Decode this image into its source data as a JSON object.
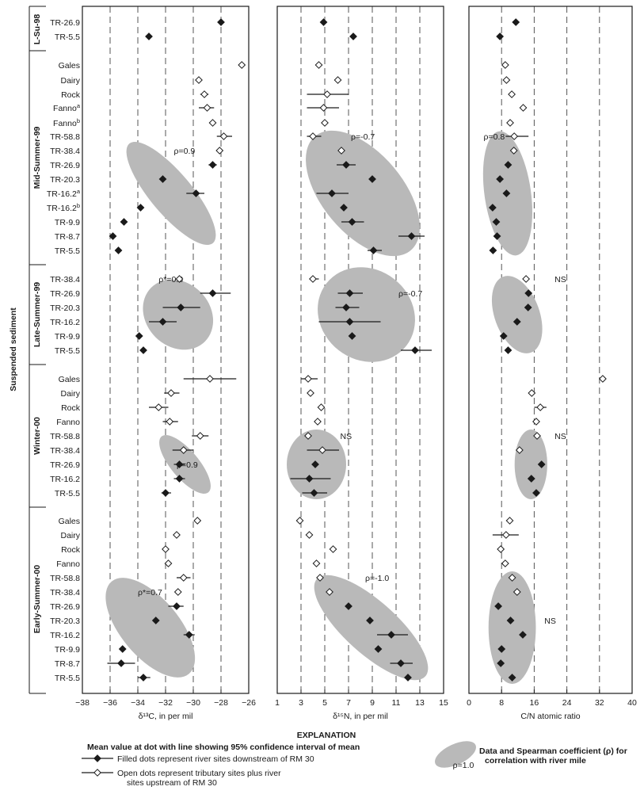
{
  "chart_data": {
    "type": "scatter",
    "description_labels": {
      "side_label": "Suspended sediment",
      "explanation_title": "EXPLANATION",
      "mean_title": "Mean value at dot with line showing 95% confidence interval of mean",
      "filled_text": "Filled dots represent river sites downstream of RM 30",
      "open_text_1": "Open dots represent tributary sites plus river",
      "open_text_2": "sites upstream of RM 30",
      "ellipse_text_1": "Data and Spearman coefficient (ρ) for",
      "ellipse_text_2": "correlation with river mile",
      "ellipse_rho": "ρ=1.0"
    },
    "rows": [
      {
        "label": "TR-26.9",
        "sup": "",
        "fill": true
      },
      {
        "label": "TR-5.5",
        "sup": "",
        "fill": true
      },
      {
        "label": "Gales",
        "sup": "",
        "fill": false
      },
      {
        "label": "Dairy",
        "sup": "",
        "fill": false
      },
      {
        "label": "Rock",
        "sup": "",
        "fill": false
      },
      {
        "label": "Fanno",
        "sup": "a",
        "fill": false
      },
      {
        "label": "Fanno",
        "sup": "b",
        "fill": false
      },
      {
        "label": "TR-58.8",
        "sup": "",
        "fill": false
      },
      {
        "label": "TR-38.4",
        "sup": "",
        "fill": false
      },
      {
        "label": "TR-26.9",
        "sup": "",
        "fill": true
      },
      {
        "label": "TR-20.3",
        "sup": "",
        "fill": true
      },
      {
        "label": "TR-16.2",
        "sup": "a",
        "fill": true
      },
      {
        "label": "TR-16.2",
        "sup": "b",
        "fill": true
      },
      {
        "label": "TR-9.9",
        "sup": "",
        "fill": true
      },
      {
        "label": "TR-8.7",
        "sup": "",
        "fill": true
      },
      {
        "label": "TR-5.5",
        "sup": "",
        "fill": true
      },
      {
        "label": "TR-38.4",
        "sup": "",
        "fill": false
      },
      {
        "label": "TR-26.9",
        "sup": "",
        "fill": true
      },
      {
        "label": "TR-20.3",
        "sup": "",
        "fill": true
      },
      {
        "label": "TR-16.2",
        "sup": "",
        "fill": true
      },
      {
        "label": "TR-9.9",
        "sup": "",
        "fill": true
      },
      {
        "label": "TR-5.5",
        "sup": "",
        "fill": true
      },
      {
        "label": "Gales",
        "sup": "",
        "fill": false
      },
      {
        "label": "Dairy",
        "sup": "",
        "fill": false
      },
      {
        "label": "Rock",
        "sup": "",
        "fill": false
      },
      {
        "label": "Fanno",
        "sup": "",
        "fill": false
      },
      {
        "label": "TR-58.8",
        "sup": "",
        "fill": false
      },
      {
        "label": "TR-38.4",
        "sup": "",
        "fill": false
      },
      {
        "label": "TR-26.9",
        "sup": "",
        "fill": true
      },
      {
        "label": "TR-16.2",
        "sup": "",
        "fill": true
      },
      {
        "label": "TR-5.5",
        "sup": "",
        "fill": true
      },
      {
        "label": "Gales",
        "sup": "",
        "fill": false
      },
      {
        "label": "Dairy",
        "sup": "",
        "fill": false
      },
      {
        "label": "Rock",
        "sup": "",
        "fill": false
      },
      {
        "label": "Fanno",
        "sup": "",
        "fill": false
      },
      {
        "label": "TR-58.8",
        "sup": "",
        "fill": false
      },
      {
        "label": "TR-38.4",
        "sup": "",
        "fill": false
      },
      {
        "label": "TR-26.9",
        "sup": "",
        "fill": true
      },
      {
        "label": "TR-20.3",
        "sup": "",
        "fill": true
      },
      {
        "label": "TR-16.2",
        "sup": "",
        "fill": true
      },
      {
        "label": "TR-9.9",
        "sup": "",
        "fill": true
      },
      {
        "label": "TR-8.7",
        "sup": "",
        "fill": true
      },
      {
        "label": "TR-5.5",
        "sup": "",
        "fill": true
      }
    ],
    "groups": [
      {
        "name": "L-Su-98",
        "rows": [
          0,
          1
        ]
      },
      {
        "name": "Mid-Summer-99",
        "rows": [
          2,
          15
        ]
      },
      {
        "name": "Late-Summer-99",
        "rows": [
          16,
          21
        ]
      },
      {
        "name": "Winter-00",
        "rows": [
          22,
          30
        ]
      },
      {
        "name": "Early-Summer-00",
        "rows": [
          31,
          42
        ]
      }
    ],
    "panels": [
      {
        "xlabel": "δ¹³C, in per mil",
        "xlim": [
          -38,
          -26
        ],
        "ticks": [
          -38,
          -36,
          -34,
          -32,
          -30,
          -28,
          -26
        ],
        "grid": [
          -36,
          -34,
          -32,
          -30,
          -28
        ],
        "points": [
          [
            -28.0,
            null,
            null
          ],
          [
            -33.2,
            null,
            null
          ],
          [
            -26.5,
            null,
            null
          ],
          [
            -29.6,
            null,
            null
          ],
          [
            -29.2,
            -29.5,
            -28.9
          ],
          [
            -29.0,
            -29.6,
            -28.5
          ],
          [
            -28.6,
            null,
            null
          ],
          [
            -27.8,
            -28.3,
            -27.2
          ],
          [
            -28.1,
            null,
            null
          ],
          [
            -28.6,
            -28.9,
            -28.3
          ],
          [
            -32.2,
            null,
            null
          ],
          [
            -29.8,
            -30.5,
            -29.2
          ],
          [
            -33.8,
            null,
            null
          ],
          [
            -35.0,
            null,
            null
          ],
          [
            -35.8,
            null,
            null
          ],
          [
            -35.4,
            null,
            null
          ],
          [
            -31.0,
            null,
            null
          ],
          [
            -28.6,
            -29.5,
            -27.3
          ],
          [
            -30.9,
            -32.2,
            -29.5
          ],
          [
            -32.2,
            -33.2,
            -31.2
          ],
          [
            -33.9,
            null,
            null
          ],
          [
            -33.6,
            null,
            null
          ],
          [
            -28.8,
            -30.7,
            -26.9
          ],
          [
            -31.6,
            -32.1,
            -31.0
          ],
          [
            -32.5,
            -33.2,
            -31.8
          ],
          [
            -31.7,
            -32.2,
            -31.1
          ],
          [
            -29.5,
            -30.1,
            -28.9
          ],
          [
            -30.7,
            -31.5,
            -30.0
          ],
          [
            -31.0,
            -31.4,
            -30.6
          ],
          [
            -31.0,
            -31.4,
            -30.6
          ],
          [
            -32.0,
            -32.3,
            -31.6
          ],
          [
            -29.7,
            null,
            null
          ],
          [
            -31.2,
            null,
            null
          ],
          [
            -32.0,
            null,
            null
          ],
          [
            -31.8,
            null,
            null
          ],
          [
            -30.7,
            -31.2,
            -30.2
          ],
          [
            -31.1,
            null,
            null
          ],
          [
            -31.2,
            -31.8,
            -30.7
          ],
          [
            -32.7,
            null,
            null
          ],
          [
            -30.3,
            -30.7,
            -29.9
          ],
          [
            -35.1,
            null,
            null
          ],
          [
            -35.2,
            -36.2,
            -34.2
          ],
          [
            -33.6,
            -34.0,
            -33.1
          ]
        ],
        "ellipses": [
          {
            "rows": [
              7,
              15
            ],
            "cx": -31.6,
            "rx": 1.5,
            "ry": 82,
            "angle": -40,
            "label": "ρ=0.9",
            "lx": -31.4,
            "lrow": 8
          },
          {
            "rows": [
              16,
              21
            ],
            "cx": -31.1,
            "rx": 2.3,
            "ry": 48,
            "angle": -45,
            "label": "ρ*=0.8",
            "lx": -32.5,
            "lrow": 16
          },
          {
            "rows": [
              26,
              30
            ],
            "cx": -30.6,
            "rx": 1.0,
            "ry": 46,
            "angle": -40,
            "label": "ρ=0.9",
            "lx": -31.2,
            "lrow": 28
          },
          {
            "rows": [
              35,
              42
            ],
            "cx": -33.1,
            "rx": 2.1,
            "ry": 76,
            "angle": -40,
            "label": "ρ*=0.7",
            "lx": -34.0,
            "lrow": 36
          }
        ]
      },
      {
        "xlabel": "δ¹⁵N, in per mil",
        "xlim": [
          1,
          15
        ],
        "ticks": [
          1,
          3,
          5,
          7,
          9,
          11,
          13,
          15
        ],
        "grid": [
          3,
          5,
          7,
          9,
          11,
          13
        ],
        "points": [
          [
            4.9,
            null,
            null
          ],
          [
            7.4,
            null,
            null
          ],
          [
            4.5,
            null,
            null
          ],
          [
            6.1,
            null,
            null
          ],
          [
            5.2,
            3.5,
            7.0
          ],
          [
            4.9,
            3.5,
            6.2
          ],
          [
            5.0,
            null,
            null
          ],
          [
            4.0,
            3.5,
            4.7
          ],
          [
            6.4,
            null,
            null
          ],
          [
            6.8,
            6.0,
            7.6
          ],
          [
            9.0,
            null,
            null
          ],
          [
            5.6,
            4.3,
            7.0
          ],
          [
            6.6,
            null,
            null
          ],
          [
            7.3,
            6.4,
            8.3
          ],
          [
            12.3,
            11.2,
            13.4
          ],
          [
            9.1,
            8.6,
            9.8
          ],
          [
            4.0,
            3.7,
            4.5
          ],
          [
            7.1,
            6.1,
            8.2
          ],
          [
            6.8,
            5.9,
            7.9
          ],
          [
            7.1,
            4.5,
            9.7
          ],
          [
            7.3,
            null,
            null
          ],
          [
            12.6,
            11.4,
            14.0
          ],
          [
            3.6,
            3.0,
            4.4
          ],
          [
            3.8,
            null,
            null
          ],
          [
            4.7,
            null,
            null
          ],
          [
            4.4,
            null,
            null
          ],
          [
            3.6,
            null,
            null
          ],
          [
            4.8,
            3.5,
            6.2
          ],
          [
            4.2,
            null,
            null
          ],
          [
            3.7,
            2.1,
            5.5
          ],
          [
            4.1,
            3.1,
            5.2
          ],
          [
            2.9,
            null,
            null
          ],
          [
            3.7,
            null,
            null
          ],
          [
            5.7,
            null,
            null
          ],
          [
            4.3,
            null,
            null
          ],
          [
            4.6,
            null,
            null
          ],
          [
            5.4,
            null,
            null
          ],
          [
            7.0,
            null,
            null
          ],
          [
            8.8,
            null,
            null
          ],
          [
            10.6,
            9.4,
            12.0
          ],
          [
            9.5,
            null,
            null
          ],
          [
            11.4,
            10.5,
            12.4
          ],
          [
            12.0,
            null,
            null
          ]
        ],
        "ellipses": [
          {
            "rows": [
              7,
              15
            ],
            "cx": 8.2,
            "rx": 3.4,
            "ry": 94,
            "angle": -40,
            "label": "ρ=-0.7",
            "lx": 7.2,
            "lrow": 7
          },
          {
            "rows": [
              16,
              21
            ],
            "cx": 8.5,
            "rx": 3.8,
            "ry": 64,
            "angle": -52,
            "label": "ρ=-0.7",
            "lx": 11.2,
            "lrow": 17
          },
          {
            "rows": [
              26,
              30
            ],
            "cx": 4.3,
            "rx": 2.5,
            "ry": 44,
            "angle": 0,
            "label": "NS",
            "lx": 6.3,
            "lrow": 26
          },
          {
            "rows": [
              35,
              42
            ],
            "cx": 8.9,
            "rx": 2.2,
            "ry": 92,
            "angle": -48,
            "label": "ρ=-1.0",
            "lx": 8.4,
            "lrow": 35
          }
        ]
      },
      {
        "xlabel": "C/N atomic ratio",
        "xlim": [
          0,
          40
        ],
        "ticks": [
          0,
          8,
          16,
          24,
          32,
          40
        ],
        "grid": [
          8,
          16,
          24,
          32
        ],
        "points": [
          [
            11.5,
            null,
            null
          ],
          [
            7.6,
            null,
            null
          ],
          [
            8.9,
            null,
            null
          ],
          [
            9.2,
            null,
            null
          ],
          [
            10.5,
            null,
            null
          ],
          [
            13.3,
            null,
            null
          ],
          [
            10.1,
            null,
            null
          ],
          [
            11.1,
            9.0,
            14.6
          ],
          [
            11.0,
            null,
            null
          ],
          [
            9.6,
            null,
            null
          ],
          [
            7.6,
            null,
            null
          ],
          [
            9.2,
            null,
            null
          ],
          [
            5.8,
            null,
            null
          ],
          [
            6.7,
            null,
            null
          ],
          [
            6.9,
            null,
            null
          ],
          [
            5.9,
            null,
            null
          ],
          [
            14.0,
            null,
            null
          ],
          [
            14.6,
            null,
            null
          ],
          [
            14.5,
            null,
            null
          ],
          [
            11.8,
            null,
            null
          ],
          [
            8.5,
            null,
            null
          ],
          [
            9.6,
            null,
            null
          ],
          [
            32.8,
            null,
            null
          ],
          [
            15.4,
            null,
            null
          ],
          [
            17.5,
            16.0,
            19.0
          ],
          [
            16.5,
            null,
            null
          ],
          [
            16.7,
            null,
            null
          ],
          [
            12.4,
            null,
            null
          ],
          [
            17.8,
            null,
            null
          ],
          [
            15.3,
            null,
            null
          ],
          [
            16.5,
            null,
            null
          ],
          [
            10.0,
            null,
            null
          ],
          [
            9.1,
            5.8,
            12.2
          ],
          [
            7.8,
            null,
            null
          ],
          [
            8.9,
            null,
            null
          ],
          [
            10.6,
            null,
            null
          ],
          [
            11.8,
            null,
            null
          ],
          [
            7.2,
            null,
            null
          ],
          [
            10.2,
            null,
            null
          ],
          [
            13.2,
            null,
            null
          ],
          [
            8.0,
            null,
            null
          ],
          [
            7.8,
            null,
            null
          ],
          [
            10.6,
            null,
            null
          ]
        ],
        "ellipses": [
          {
            "rows": [
              7,
              15
            ],
            "cx": 9.5,
            "rx": 5.7,
            "ry": 79,
            "angle": -8,
            "label": "ρ=0.8",
            "lx": 3.6,
            "lrow": 7
          },
          {
            "rows": [
              16,
              21
            ],
            "cx": 11.8,
            "rx": 5.5,
            "ry": 51,
            "angle": -20,
            "label": "NS",
            "lx": 21.0,
            "lrow": 16
          },
          {
            "rows": [
              26,
              30
            ],
            "cx": 15.2,
            "rx": 4.0,
            "ry": 44,
            "angle": 0,
            "label": "NS",
            "lx": 21.0,
            "lrow": 26
          },
          {
            "rows": [
              35,
              42
            ],
            "cx": 10.6,
            "rx": 5.8,
            "ry": 71,
            "angle": 0,
            "label": "NS",
            "lx": 18.5,
            "lrow": 38
          }
        ]
      }
    ]
  }
}
